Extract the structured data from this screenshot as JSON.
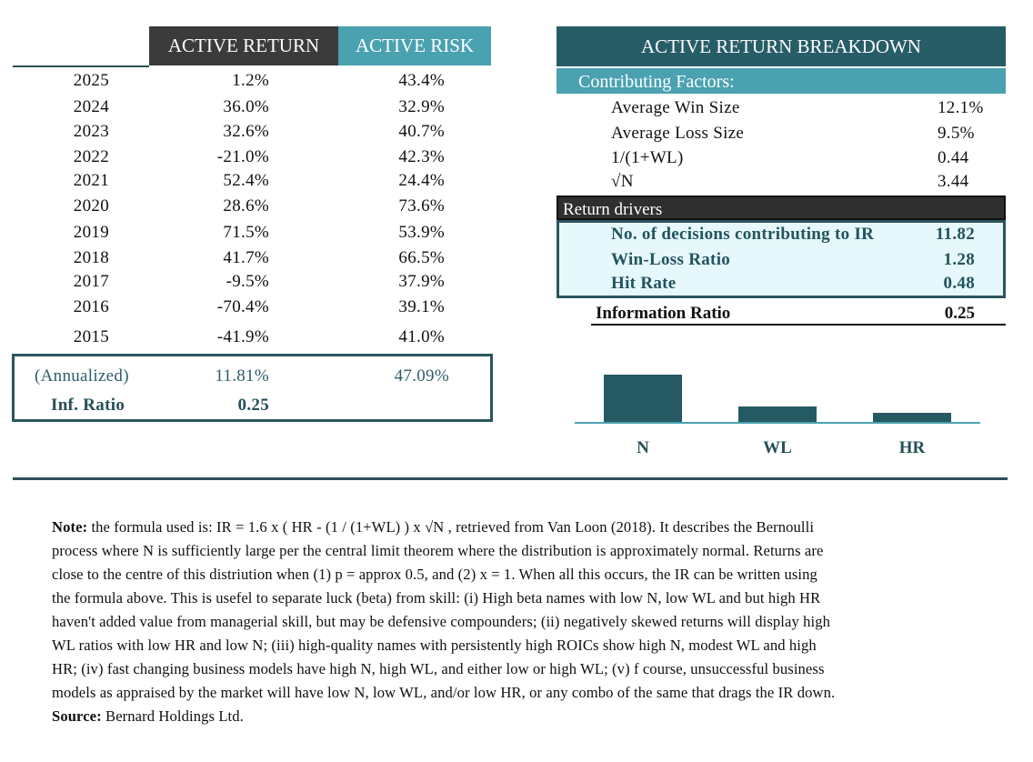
{
  "returns_table": {
    "headers": {
      "active_return": "ACTIVE RETURN",
      "active_risk": "ACTIVE RISK"
    },
    "rows": [
      {
        "year": "2025",
        "active_return": "1.2%",
        "active_risk": "43.4%"
      },
      {
        "year": "2024",
        "active_return": "36.0%",
        "active_risk": "32.9%"
      },
      {
        "year": "2023",
        "active_return": "32.6%",
        "active_risk": "40.7%"
      },
      {
        "year": "2022",
        "active_return": "-21.0%",
        "active_risk": "42.3%"
      },
      {
        "year": "2021",
        "active_return": "52.4%",
        "active_risk": "24.4%"
      },
      {
        "year": "2020",
        "active_return": "28.6%",
        "active_risk": "73.6%"
      },
      {
        "year": "2019",
        "active_return": "71.5%",
        "active_risk": "53.9%"
      },
      {
        "year": "2018",
        "active_return": "41.7%",
        "active_risk": "66.5%"
      },
      {
        "year": "2017",
        "active_return": "-9.5%",
        "active_risk": "37.9%"
      },
      {
        "year": "2016",
        "active_return": "-70.4%",
        "active_risk": "39.1%"
      },
      {
        "year": "2015",
        "active_return": "-41.9%",
        "active_risk": "41.0%"
      }
    ],
    "annualized": {
      "label": "(Annualized)",
      "active_return": "11.81%",
      "active_risk": "47.09%"
    },
    "inf_ratio": {
      "label": "Inf. Ratio",
      "value": "0.25"
    }
  },
  "breakdown": {
    "title": "ACTIVE RETURN BREAKDOWN",
    "contributing_label": "Contributing Factors:",
    "factors": [
      {
        "label": "Average Win Size",
        "value": "12.1%"
      },
      {
        "label": "Average Loss Size",
        "value": "9.5%"
      },
      {
        "label": "1/(1+WL)",
        "value": "0.44"
      },
      {
        "label": "√N",
        "value": "3.44"
      }
    ],
    "drivers_label": "Return drivers",
    "drivers": [
      {
        "label": "No. of decisions contributing to IR",
        "value": "11.82"
      },
      {
        "label": "Win-Loss Ratio",
        "value": "1.28"
      },
      {
        "label": "Hit Rate",
        "value": "0.48"
      }
    ],
    "info_ratio": {
      "label": "Information Ratio",
      "value": "0.25"
    }
  },
  "chart_data": {
    "type": "bar",
    "categories": [
      "N",
      "WL",
      "HR"
    ],
    "values": [
      11.82,
      1.28,
      0.48
    ],
    "color": "#255a63"
  },
  "note": {
    "note_label": "Note:",
    "lines": [
      " the formula used is: IR = 1.6 x ( HR - (1 / (1+WL) ) x √N , retrieved from Van Loon (2018). It describes the Bernoulli",
      "process where N is sufficiently large per the central limit theorem where the distribution is approximately normal. Returns are",
      "close to the centre of this distriution when (1) p = approx 0.5, and (2) x = 1. When all this occurs, the IR can be written using",
      "the formula above. This is usefel to separate luck (beta) from skill: (i)  High beta names with low N, low WL and but high HR",
      "haven't added value from managerial skill, but may be defensive compounders; (ii) negatively skewed returns will display high",
      "WL ratios with low HR and low N; (iii) high-quality names with persistently high ROICs show high N, modest WL and high",
      "HR; (iv) fast changing business models have high N, high WL, and either low or high WL; (v) f course, unsuccessful business",
      "models as appraised by the market will have low N, low WL, and/or low HR, or any combo of the same that drags the IR down."
    ],
    "source_label": "Source:",
    "source_text": " Bernard Holdings Ltd."
  }
}
